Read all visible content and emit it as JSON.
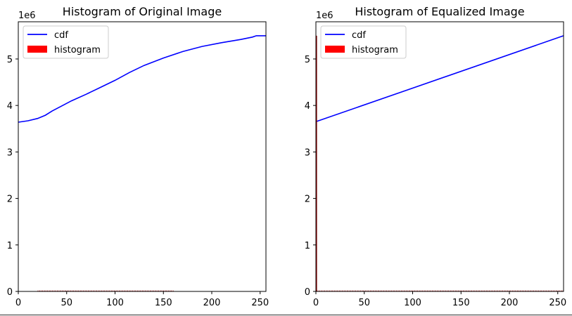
{
  "chart_data": [
    {
      "type": "line",
      "title": "Histogram of Original Image",
      "xlabel": "",
      "ylabel": "",
      "xlim": [
        0,
        256
      ],
      "ylim": [
        0,
        5800000
      ],
      "y_offset_label": "1e6",
      "x_ticks": [
        0,
        50,
        100,
        150,
        200,
        250
      ],
      "y_ticks": [
        0,
        1000000,
        2000000,
        3000000,
        4000000,
        5000000
      ],
      "x_tick_labels": [
        "0",
        "50",
        "100",
        "150",
        "200",
        "250"
      ],
      "y_tick_labels": [
        "0",
        "1",
        "2",
        "3",
        "4",
        "5"
      ],
      "grid": false,
      "legend_position": "upper-left",
      "series": [
        {
          "name": "cdf",
          "type": "line",
          "color": "#0000ff",
          "x": [
            0,
            10,
            20,
            28,
            35,
            45,
            55,
            70,
            85,
            100,
            115,
            130,
            150,
            170,
            190,
            210,
            230,
            242,
            246,
            256
          ],
          "y": [
            3640000,
            3670000,
            3720000,
            3790000,
            3880000,
            3990000,
            4100000,
            4240000,
            4390000,
            4540000,
            4710000,
            4860000,
            5020000,
            5160000,
            5270000,
            5350000,
            5420000,
            5470000,
            5500000,
            5500000
          ]
        },
        {
          "name": "histogram",
          "type": "bar",
          "color": "#ff0000",
          "x_range": [
            20,
            160
          ],
          "value": 20000
        }
      ]
    },
    {
      "type": "line",
      "title": "Histogram of Equalized Image",
      "xlabel": "",
      "ylabel": "",
      "xlim": [
        0,
        256
      ],
      "ylim": [
        0,
        5800000
      ],
      "y_offset_label": "1e6",
      "x_ticks": [
        0,
        50,
        100,
        150,
        200,
        250
      ],
      "y_ticks": [
        0,
        1000000,
        2000000,
        3000000,
        4000000,
        5000000
      ],
      "x_tick_labels": [
        "0",
        "50",
        "100",
        "150",
        "200",
        "250"
      ],
      "y_tick_labels": [
        "0",
        "1",
        "2",
        "3",
        "4",
        "5"
      ],
      "grid": false,
      "legend_position": "upper-left",
      "series": [
        {
          "name": "cdf",
          "type": "line",
          "color": "#0000ff",
          "x": [
            0,
            256
          ],
          "y": [
            3650000,
            5500000
          ]
        },
        {
          "name": "histogram",
          "type": "bar",
          "color": "#ff0000",
          "spike": {
            "x": 0,
            "value": 5500000
          },
          "x_range": [
            1,
            255
          ],
          "value": 20000
        }
      ]
    }
  ]
}
